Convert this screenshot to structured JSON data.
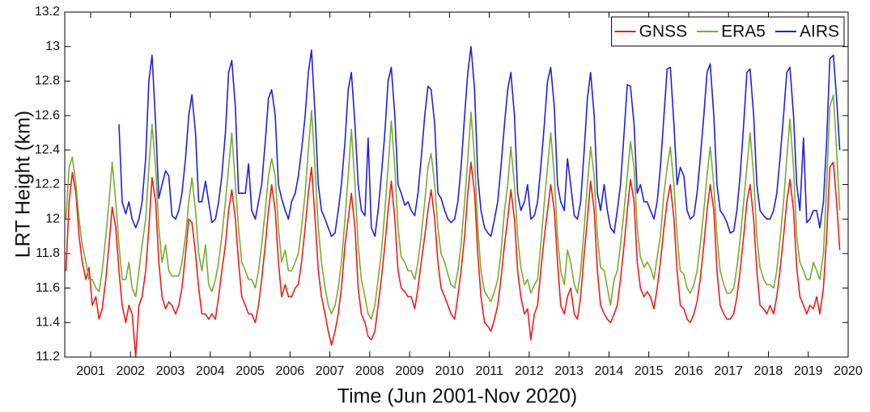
{
  "chart_data": {
    "type": "line",
    "xlabel": "Time (Jun 2001-Nov 2020)",
    "ylabel": "LRT Height (km)",
    "xlim": [
      2000.35,
      2020.0
    ],
    "ylim": [
      11.2,
      13.2
    ],
    "xticks": [
      2001,
      2002,
      2003,
      2004,
      2005,
      2006,
      2007,
      2008,
      2009,
      2010,
      2011,
      2012,
      2013,
      2014,
      2015,
      2016,
      2017,
      2018,
      2019,
      2020
    ],
    "yticks": [
      11.2,
      11.4,
      11.6,
      11.8,
      12,
      12.2,
      12.4,
      12.6,
      12.8,
      13,
      13.2
    ],
    "legend": "upper right",
    "x": [
      2000.38,
      2000.46,
      2000.54,
      2000.63,
      2000.71,
      2000.79,
      2000.88,
      2000.96,
      2001.04,
      2001.13,
      2001.21,
      2001.29,
      2001.38,
      2001.46,
      2001.54,
      2001.63,
      2001.71,
      2001.79,
      2001.88,
      2001.96,
      2002.04,
      2002.13,
      2002.21,
      2002.29,
      2002.38,
      2002.46,
      2002.54,
      2002.63,
      2002.71,
      2002.79,
      2002.88,
      2002.96,
      2003.04,
      2003.13,
      2003.21,
      2003.29,
      2003.38,
      2003.46,
      2003.54,
      2003.63,
      2003.71,
      2003.79,
      2003.88,
      2003.96,
      2004.04,
      2004.13,
      2004.21,
      2004.29,
      2004.38,
      2004.46,
      2004.54,
      2004.63,
      2004.71,
      2004.79,
      2004.88,
      2004.96,
      2005.04,
      2005.13,
      2005.21,
      2005.29,
      2005.38,
      2005.46,
      2005.54,
      2005.63,
      2005.71,
      2005.79,
      2005.88,
      2005.96,
      2006.04,
      2006.13,
      2006.21,
      2006.29,
      2006.38,
      2006.46,
      2006.54,
      2006.63,
      2006.71,
      2006.79,
      2006.88,
      2006.96,
      2007.04,
      2007.13,
      2007.21,
      2007.29,
      2007.38,
      2007.46,
      2007.54,
      2007.63,
      2007.71,
      2007.79,
      2007.88,
      2007.96,
      2008.04,
      2008.13,
      2008.21,
      2008.29,
      2008.38,
      2008.46,
      2008.54,
      2008.63,
      2008.71,
      2008.79,
      2008.88,
      2008.96,
      2009.04,
      2009.13,
      2009.21,
      2009.29,
      2009.38,
      2009.46,
      2009.54,
      2009.63,
      2009.71,
      2009.79,
      2009.88,
      2009.96,
      2010.04,
      2010.13,
      2010.21,
      2010.29,
      2010.38,
      2010.46,
      2010.54,
      2010.63,
      2010.71,
      2010.79,
      2010.88,
      2010.96,
      2011.04,
      2011.13,
      2011.21,
      2011.29,
      2011.38,
      2011.46,
      2011.54,
      2011.63,
      2011.71,
      2011.79,
      2011.88,
      2011.96,
      2012.04,
      2012.13,
      2012.21,
      2012.29,
      2012.38,
      2012.46,
      2012.54,
      2012.63,
      2012.71,
      2012.79,
      2012.88,
      2012.96,
      2013.04,
      2013.13,
      2013.21,
      2013.29,
      2013.38,
      2013.46,
      2013.54,
      2013.63,
      2013.71,
      2013.79,
      2013.88,
      2013.96,
      2014.04,
      2014.13,
      2014.21,
      2014.29,
      2014.38,
      2014.46,
      2014.54,
      2014.63,
      2014.71,
      2014.79,
      2014.88,
      2014.96,
      2015.04,
      2015.13,
      2015.21,
      2015.29,
      2015.38,
      2015.46,
      2015.54,
      2015.63,
      2015.71,
      2015.79,
      2015.88,
      2015.96,
      2016.04,
      2016.13,
      2016.21,
      2016.29,
      2016.38,
      2016.46,
      2016.54,
      2016.63,
      2016.71,
      2016.79,
      2016.88,
      2016.96,
      2017.04,
      2017.13,
      2017.21,
      2017.29,
      2017.38,
      2017.46,
      2017.54,
      2017.63,
      2017.71,
      2017.79,
      2017.88,
      2017.96,
      2018.04,
      2018.13,
      2018.21,
      2018.29,
      2018.38,
      2018.46,
      2018.54,
      2018.63,
      2018.71,
      2018.79,
      2018.88,
      2018.96,
      2019.04,
      2019.13,
      2019.21,
      2019.29,
      2019.38,
      2019.46,
      2019.54,
      2019.63,
      2019.71,
      2019.79
    ],
    "series": [
      {
        "name": "GNSS",
        "color": "#ee1c1c",
        "values": [
          11.7,
          12.1,
          12.27,
          12.15,
          11.9,
          11.75,
          11.65,
          11.72,
          11.5,
          11.55,
          11.42,
          11.48,
          11.65,
          11.85,
          12.07,
          11.95,
          11.7,
          11.5,
          11.4,
          11.5,
          11.45,
          11.2,
          11.5,
          11.55,
          11.7,
          11.95,
          12.24,
          12.1,
          11.75,
          11.55,
          11.48,
          11.52,
          11.5,
          11.45,
          11.5,
          11.6,
          11.8,
          12.0,
          11.98,
          11.8,
          11.6,
          11.45,
          11.45,
          11.42,
          11.45,
          11.42,
          11.55,
          11.7,
          11.85,
          12.05,
          12.17,
          12.0,
          11.75,
          11.55,
          11.5,
          11.45,
          11.45,
          11.4,
          11.5,
          11.65,
          11.85,
          12.05,
          12.2,
          12.05,
          11.75,
          11.55,
          11.62,
          11.55,
          11.55,
          11.6,
          11.62,
          11.75,
          11.95,
          12.15,
          12.3,
          12.0,
          11.7,
          11.55,
          11.45,
          11.35,
          11.27,
          11.35,
          11.45,
          11.6,
          11.85,
          12.0,
          12.15,
          11.95,
          11.6,
          11.45,
          11.4,
          11.32,
          11.3,
          11.35,
          11.5,
          11.65,
          11.85,
          12.05,
          12.22,
          12.0,
          11.7,
          11.6,
          11.58,
          11.55,
          11.55,
          11.48,
          11.6,
          11.75,
          11.9,
          12.05,
          12.17,
          12.0,
          11.75,
          11.6,
          11.55,
          11.5,
          11.45,
          11.42,
          11.55,
          11.7,
          11.9,
          12.15,
          12.33,
          12.15,
          11.8,
          11.55,
          11.4,
          11.38,
          11.35,
          11.42,
          11.5,
          11.65,
          11.85,
          12.0,
          12.17,
          12.0,
          11.7,
          11.55,
          11.45,
          11.48,
          11.3,
          11.45,
          11.5,
          11.7,
          11.9,
          12.05,
          12.2,
          12.05,
          11.75,
          11.5,
          11.45,
          11.55,
          11.6,
          11.45,
          11.42,
          11.55,
          11.8,
          12.0,
          12.22,
          12.05,
          11.7,
          11.5,
          11.45,
          11.42,
          11.4,
          11.45,
          11.5,
          11.65,
          11.85,
          12.05,
          12.23,
          12.1,
          11.75,
          11.6,
          11.55,
          11.58,
          11.55,
          11.48,
          11.6,
          11.75,
          11.95,
          12.1,
          12.2,
          12.0,
          11.7,
          11.5,
          11.48,
          11.42,
          11.4,
          11.45,
          11.52,
          11.65,
          11.85,
          12.05,
          12.2,
          12.05,
          11.7,
          11.5,
          11.45,
          11.42,
          11.42,
          11.45,
          11.55,
          11.7,
          11.9,
          12.1,
          12.2,
          12.0,
          11.7,
          11.5,
          11.48,
          11.45,
          11.5,
          11.45,
          11.55,
          11.7,
          11.9,
          12.1,
          12.23,
          12.05,
          11.72,
          11.55,
          11.5,
          11.45,
          11.5,
          11.48,
          11.55,
          11.45,
          11.6,
          11.9,
          12.3,
          12.33,
          12.1,
          11.82
        ]
      },
      {
        "name": "ERA5",
        "color": "#77ac30",
        "values": [
          12.0,
          12.3,
          12.36,
          12.2,
          12.0,
          11.85,
          11.75,
          11.65,
          11.65,
          11.6,
          11.58,
          11.7,
          11.9,
          12.1,
          12.33,
          12.1,
          11.85,
          11.65,
          11.65,
          11.75,
          11.6,
          11.55,
          11.7,
          11.85,
          12.0,
          12.3,
          12.55,
          12.3,
          11.95,
          11.75,
          11.85,
          11.7,
          11.67,
          11.67,
          11.67,
          11.75,
          11.9,
          12.1,
          12.24,
          12.05,
          11.8,
          11.7,
          11.85,
          11.62,
          11.58,
          11.65,
          11.75,
          11.9,
          12.1,
          12.3,
          12.5,
          12.2,
          11.95,
          11.75,
          11.7,
          11.65,
          11.65,
          11.6,
          11.7,
          11.85,
          12.05,
          12.25,
          12.35,
          12.25,
          11.95,
          11.75,
          11.82,
          11.7,
          11.7,
          11.75,
          11.8,
          11.95,
          12.15,
          12.4,
          12.63,
          12.3,
          11.95,
          11.75,
          11.6,
          11.5,
          11.45,
          11.5,
          11.6,
          11.75,
          12.0,
          12.25,
          12.52,
          12.2,
          11.85,
          11.65,
          11.55,
          11.45,
          11.42,
          11.5,
          11.65,
          11.8,
          12.05,
          12.3,
          12.57,
          12.3,
          11.95,
          11.78,
          11.75,
          11.7,
          11.7,
          11.65,
          11.75,
          11.9,
          12.1,
          12.3,
          12.38,
          12.2,
          11.95,
          11.8,
          11.75,
          11.68,
          11.62,
          11.6,
          11.7,
          11.85,
          12.1,
          12.35,
          12.62,
          12.35,
          11.95,
          11.7,
          11.58,
          11.55,
          11.52,
          11.58,
          11.65,
          11.8,
          12.05,
          12.2,
          12.42,
          12.2,
          11.9,
          11.72,
          11.62,
          11.65,
          11.57,
          11.62,
          11.65,
          11.85,
          12.1,
          12.3,
          12.5,
          12.25,
          11.9,
          11.7,
          11.62,
          11.82,
          11.75,
          11.62,
          11.57,
          11.7,
          11.95,
          12.2,
          12.42,
          12.25,
          11.9,
          11.72,
          11.7,
          11.6,
          11.5,
          11.65,
          11.7,
          11.85,
          12.05,
          12.25,
          12.45,
          12.3,
          11.95,
          11.78,
          11.72,
          11.75,
          11.72,
          11.65,
          11.78,
          11.9,
          12.15,
          12.3,
          12.42,
          12.2,
          11.9,
          11.7,
          11.68,
          11.6,
          11.57,
          11.62,
          11.7,
          11.85,
          12.05,
          12.25,
          12.42,
          12.2,
          11.9,
          11.7,
          11.62,
          11.57,
          11.57,
          11.6,
          11.72,
          11.88,
          12.1,
          12.3,
          12.5,
          12.25,
          11.9,
          11.72,
          11.65,
          11.62,
          11.62,
          11.6,
          11.7,
          11.88,
          12.1,
          12.35,
          12.58,
          12.3,
          11.9,
          11.75,
          11.7,
          11.65,
          11.65,
          11.75,
          11.7,
          11.65,
          11.8,
          12.2,
          12.65,
          12.72,
          12.4,
          12.05
        ]
      },
      {
        "name": "AIRS",
        "color": "#1f1fe6",
        "values": [
          null,
          null,
          null,
          null,
          null,
          null,
          null,
          null,
          null,
          null,
          null,
          null,
          null,
          null,
          null,
          null,
          12.55,
          12.1,
          12.03,
          12.1,
          12.0,
          11.95,
          12.0,
          12.1,
          12.35,
          12.8,
          12.95,
          12.55,
          12.12,
          12.2,
          12.28,
          12.25,
          12.02,
          12.0,
          12.05,
          12.15,
          12.35,
          12.6,
          12.72,
          12.5,
          12.1,
          12.1,
          12.22,
          12.1,
          11.98,
          12.0,
          12.1,
          12.25,
          12.5,
          12.85,
          12.92,
          12.65,
          12.15,
          12.15,
          12.15,
          12.32,
          12.05,
          12.0,
          12.1,
          12.2,
          12.45,
          12.7,
          12.75,
          12.6,
          12.2,
          12.12,
          12.05,
          12.0,
          12.1,
          12.15,
          12.25,
          12.4,
          12.6,
          12.85,
          12.98,
          12.6,
          12.2,
          12.05,
          12.0,
          11.95,
          11.9,
          11.92,
          12.05,
          12.2,
          12.45,
          12.75,
          12.85,
          12.55,
          12.2,
          12.05,
          12.02,
          12.47,
          11.95,
          11.9,
          12.05,
          12.25,
          12.5,
          12.8,
          12.88,
          12.6,
          12.2,
          12.15,
          12.08,
          12.1,
          12.05,
          12.02,
          12.15,
          12.35,
          12.6,
          12.77,
          12.75,
          12.55,
          12.15,
          12.12,
          12.05,
          12.0,
          11.98,
          12.0,
          12.1,
          12.3,
          12.6,
          12.85,
          13.0,
          12.75,
          12.25,
          12.05,
          11.95,
          11.92,
          11.9,
          12.0,
          12.1,
          12.3,
          12.55,
          12.75,
          12.85,
          12.6,
          12.15,
          12.05,
          12.1,
          12.2,
          12.0,
          12.02,
          12.1,
          12.3,
          12.55,
          12.8,
          12.88,
          12.65,
          12.2,
          12.1,
          12.05,
          12.35,
          12.2,
          12.02,
          12.0,
          12.1,
          12.4,
          12.7,
          12.85,
          12.6,
          12.15,
          12.05,
          12.2,
          12.05,
          11.95,
          11.92,
          12.05,
          12.2,
          12.5,
          12.78,
          12.77,
          12.55,
          12.15,
          12.2,
          12.1,
          12.1,
          12.05,
          12.0,
          12.1,
          12.3,
          12.6,
          12.87,
          12.88,
          12.55,
          12.2,
          12.3,
          12.25,
          12.05,
          12.0,
          12.02,
          12.15,
          12.35,
          12.6,
          12.85,
          12.9,
          12.6,
          12.2,
          12.05,
          12.02,
          11.98,
          11.92,
          11.93,
          12.05,
          12.25,
          12.55,
          12.85,
          12.87,
          12.6,
          12.2,
          12.05,
          12.02,
          12.0,
          12.0,
          12.05,
          12.15,
          12.35,
          12.6,
          12.85,
          12.88,
          12.6,
          12.2,
          12.05,
          12.47,
          11.98,
          12.0,
          12.05,
          12.05,
          11.95,
          12.1,
          12.45,
          12.93,
          12.95,
          12.7,
          12.4
        ]
      }
    ]
  }
}
